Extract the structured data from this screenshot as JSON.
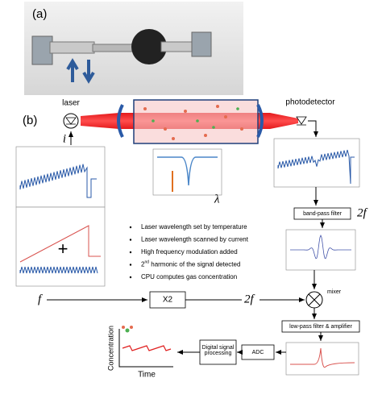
{
  "panel_a": {
    "label": "(a)"
  },
  "panel_b": {
    "label": "(b)",
    "laser": "laser",
    "photodetector": "photodetector",
    "current": "i",
    "wavelength": "λ",
    "plus": "+",
    "band_pass_filter": "band-pass filter",
    "filter_freq": "2f",
    "bullets": [
      "Laser wavelength set by temperature",
      "Laser wavelength scanned by current",
      "High frequency modulation added",
      {
        "base": "2",
        "sup": "nd",
        "rest": " harmonic of the signal detected"
      },
      "CPU computes gas concentration"
    ],
    "input_freq": "f",
    "multiplier": "X2",
    "doubled_freq": "2f",
    "mixer": "mixer",
    "low_pass_filter": "low-pass filter & amplifier",
    "adc": "ADC",
    "dsp": "Digital signal processing",
    "y_axis": "Concentration",
    "x_axis": "Time"
  }
}
